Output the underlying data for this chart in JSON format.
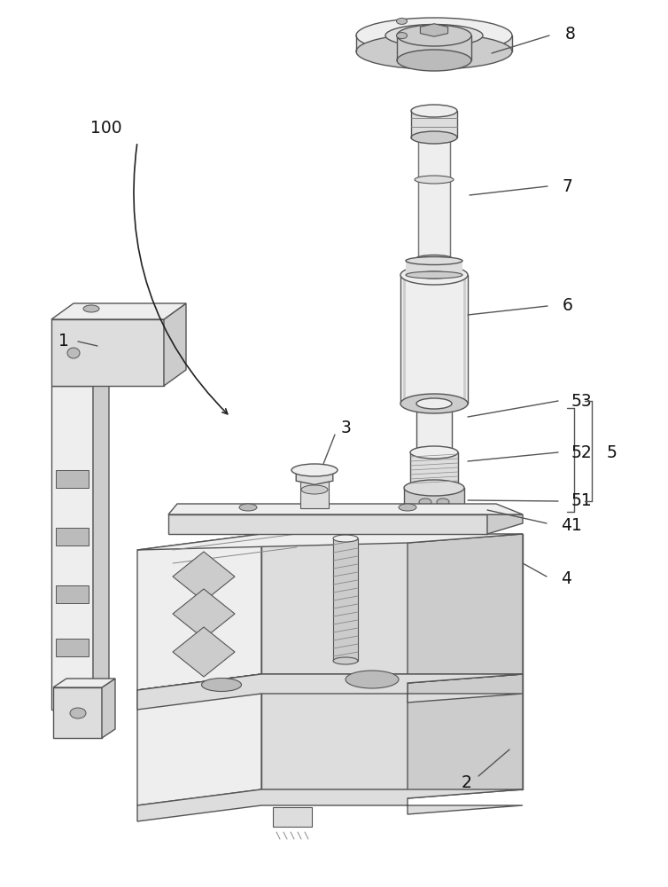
{
  "lc": "#555555",
  "lc2": "#888888",
  "bg": "white",
  "fc_light": "#eeeeee",
  "fc_mid": "#dddddd",
  "fc_dark": "#cccccc",
  "fc_darker": "#bbbbbb",
  "fc_white": "#f8f8f8"
}
